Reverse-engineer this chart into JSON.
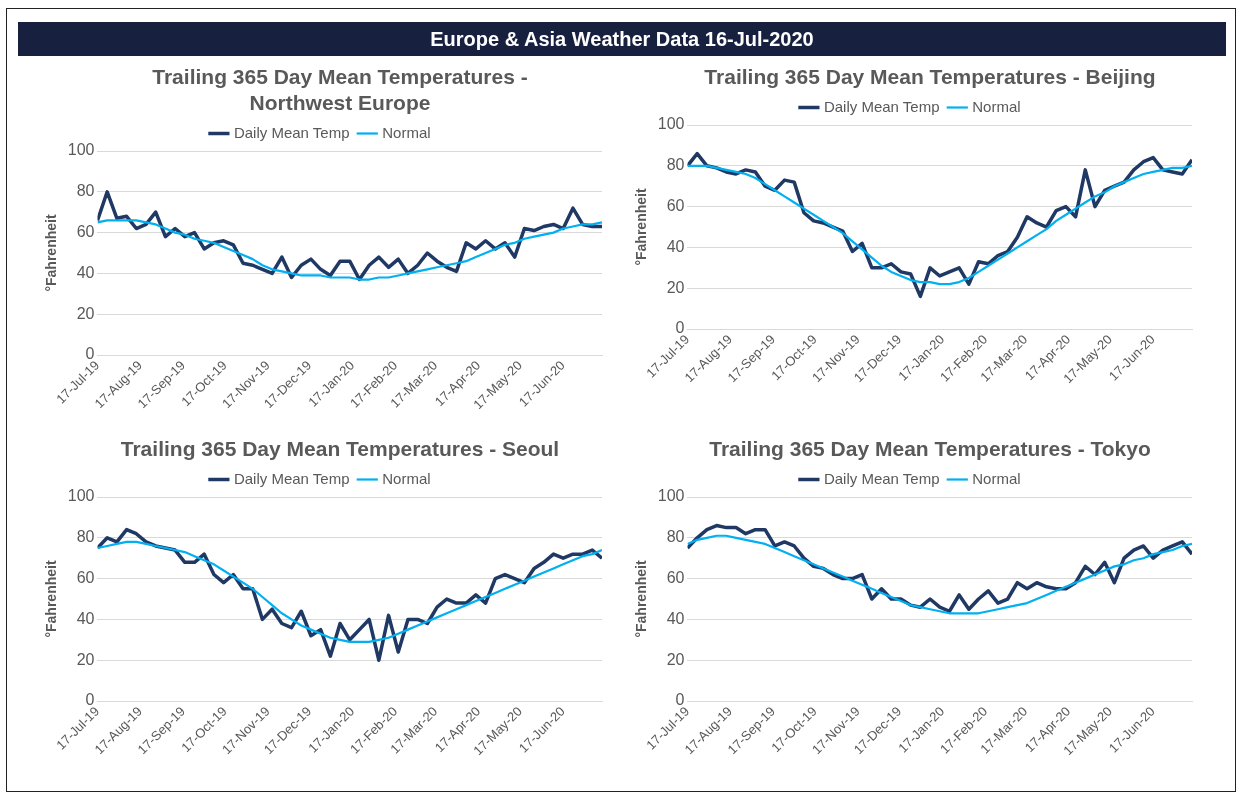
{
  "chart_data": [
    {
      "type": "other",
      "title": "Europe & Asia Weather Data  16-Jul-2020"
    },
    {
      "type": "line",
      "title": "Trailing 365 Day Mean Temperatures - Northwest Europe",
      "ylabel": "°Fahrenheit",
      "x": [
        "2019-07-17",
        "2019-07-24",
        "2019-07-31",
        "2019-08-07",
        "2019-08-14",
        "2019-08-21",
        "2019-08-28",
        "2019-09-04",
        "2019-09-11",
        "2019-09-18",
        "2019-09-25",
        "2019-10-02",
        "2019-10-09",
        "2019-10-16",
        "2019-10-23",
        "2019-10-30",
        "2019-11-06",
        "2019-11-13",
        "2019-11-20",
        "2019-11-27",
        "2019-12-04",
        "2019-12-11",
        "2019-12-18",
        "2019-12-25",
        "2020-01-01",
        "2020-01-08",
        "2020-01-15",
        "2020-01-22",
        "2020-01-29",
        "2020-02-05",
        "2020-02-12",
        "2020-02-19",
        "2020-02-26",
        "2020-03-04",
        "2020-03-11",
        "2020-03-18",
        "2020-03-25",
        "2020-04-01",
        "2020-04-08",
        "2020-04-15",
        "2020-04-22",
        "2020-04-29",
        "2020-05-06",
        "2020-05-13",
        "2020-05-20",
        "2020-05-27",
        "2020-06-03",
        "2020-06-10",
        "2020-06-17",
        "2020-06-24",
        "2020-07-01",
        "2020-07-08",
        "2020-07-15"
      ],
      "series": [
        {
          "name": "Daily Mean Temp",
          "color": "#1f3864",
          "values": [
            66,
            80,
            67,
            68,
            62,
            64,
            70,
            58,
            62,
            58,
            60,
            52,
            55,
            56,
            54,
            45,
            44,
            42,
            40,
            48,
            38,
            44,
            47,
            42,
            39,
            46,
            46,
            37,
            44,
            48,
            43,
            47,
            40,
            44,
            50,
            46,
            43,
            41,
            55,
            52,
            56,
            52,
            55,
            48,
            62,
            61,
            63,
            64,
            62,
            72,
            64,
            63,
            63
          ]
        },
        {
          "name": "Normal",
          "color": "#00b0f0",
          "values": [
            65,
            66,
            66,
            66,
            66,
            65,
            64,
            62,
            60,
            59,
            57,
            56,
            55,
            53,
            51,
            49,
            47,
            44,
            42,
            41,
            40,
            39,
            39,
            39,
            38,
            38,
            38,
            37,
            37,
            38,
            38,
            39,
            40,
            41,
            42,
            43,
            44,
            45,
            46,
            48,
            50,
            52,
            54,
            55,
            57,
            58,
            59,
            60,
            62,
            63,
            64,
            64,
            65
          ]
        }
      ],
      "xlim": [
        "2019-07-17",
        "2020-07-15"
      ],
      "xticks": [
        {
          "value": "2019-07-17",
          "label": "17-Jul-19"
        },
        {
          "value": "2019-08-17",
          "label": "17-Aug-19"
        },
        {
          "value": "2019-09-17",
          "label": "17-Sep-19"
        },
        {
          "value": "2019-10-17",
          "label": "17-Oct-19"
        },
        {
          "value": "2019-11-17",
          "label": "17-Nov-19"
        },
        {
          "value": "2019-12-17",
          "label": "17-Dec-19"
        },
        {
          "value": "2020-01-17",
          "label": "17-Jan-20"
        },
        {
          "value": "2020-02-17",
          "label": "17-Feb-20"
        },
        {
          "value": "2020-03-17",
          "label": "17-Mar-20"
        },
        {
          "value": "2020-04-17",
          "label": "17-Apr-20"
        },
        {
          "value": "2020-05-17",
          "label": "17-May-20"
        },
        {
          "value": "2020-06-17",
          "label": "17-Jun-20"
        }
      ],
      "ylim": [
        0,
        100
      ],
      "yticks": [
        0,
        20,
        40,
        60,
        80,
        100
      ],
      "grid": "y",
      "legend": "top"
    },
    {
      "type": "line",
      "title": "Trailing 365 Day Mean Temperatures - Beijing",
      "ylabel": "°Fahrenheit",
      "x": [
        "2019-07-17",
        "2019-07-24",
        "2019-07-31",
        "2019-08-07",
        "2019-08-14",
        "2019-08-21",
        "2019-08-28",
        "2019-09-04",
        "2019-09-11",
        "2019-09-18",
        "2019-09-25",
        "2019-10-02",
        "2019-10-09",
        "2019-10-16",
        "2019-10-23",
        "2019-10-30",
        "2019-11-06",
        "2019-11-13",
        "2019-11-20",
        "2019-11-27",
        "2019-12-04",
        "2019-12-11",
        "2019-12-18",
        "2019-12-25",
        "2020-01-01",
        "2020-01-08",
        "2020-01-15",
        "2020-01-22",
        "2020-01-29",
        "2020-02-05",
        "2020-02-12",
        "2020-02-19",
        "2020-02-26",
        "2020-03-04",
        "2020-03-11",
        "2020-03-18",
        "2020-03-25",
        "2020-04-01",
        "2020-04-08",
        "2020-04-15",
        "2020-04-22",
        "2020-04-29",
        "2020-05-06",
        "2020-05-13",
        "2020-05-20",
        "2020-05-27",
        "2020-06-03",
        "2020-06-10",
        "2020-06-17",
        "2020-06-24",
        "2020-07-01",
        "2020-07-08",
        "2020-07-15"
      ],
      "series": [
        {
          "name": "Daily Mean Temp",
          "color": "#1f3864",
          "values": [
            80,
            86,
            80,
            79,
            77,
            76,
            78,
            77,
            70,
            68,
            73,
            72,
            57,
            53,
            52,
            50,
            48,
            38,
            42,
            30,
            30,
            32,
            28,
            27,
            16,
            30,
            26,
            28,
            30,
            22,
            33,
            32,
            36,
            38,
            45,
            55,
            52,
            50,
            58,
            60,
            55,
            78,
            60,
            68,
            70,
            72,
            78,
            82,
            84,
            78,
            77,
            76,
            83
          ]
        },
        {
          "name": "Normal",
          "color": "#00b0f0",
          "values": [
            80,
            80,
            80,
            79,
            78,
            77,
            76,
            74,
            71,
            68,
            65,
            62,
            59,
            56,
            53,
            50,
            47,
            43,
            39,
            35,
            31,
            28,
            26,
            24,
            23,
            23,
            22,
            22,
            23,
            25,
            28,
            31,
            34,
            37,
            40,
            43,
            46,
            49,
            53,
            56,
            59,
            62,
            65,
            67,
            70,
            72,
            74,
            76,
            77,
            78,
            79,
            79,
            80
          ]
        }
      ],
      "xlim": [
        "2019-07-17",
        "2020-07-15"
      ],
      "xticks": [
        {
          "value": "2019-07-17",
          "label": "17-Jul-19"
        },
        {
          "value": "2019-08-17",
          "label": "17-Aug-19"
        },
        {
          "value": "2019-09-17",
          "label": "17-Sep-19"
        },
        {
          "value": "2019-10-17",
          "label": "17-Oct-19"
        },
        {
          "value": "2019-11-17",
          "label": "17-Nov-19"
        },
        {
          "value": "2019-12-17",
          "label": "17-Dec-19"
        },
        {
          "value": "2020-01-17",
          "label": "17-Jan-20"
        },
        {
          "value": "2020-02-17",
          "label": "17-Feb-20"
        },
        {
          "value": "2020-03-17",
          "label": "17-Mar-20"
        },
        {
          "value": "2020-04-17",
          "label": "17-Apr-20"
        },
        {
          "value": "2020-05-17",
          "label": "17-May-20"
        },
        {
          "value": "2020-06-17",
          "label": "17-Jun-20"
        }
      ],
      "ylim": [
        0,
        100
      ],
      "yticks": [
        0,
        20,
        40,
        60,
        80,
        100
      ],
      "grid": "y",
      "legend": "top"
    },
    {
      "type": "line",
      "title": "Trailing 365 Day Mean Temperatures - Seoul",
      "ylabel": "°Fahrenheit",
      "x": [
        "2019-07-17",
        "2019-07-24",
        "2019-07-31",
        "2019-08-07",
        "2019-08-14",
        "2019-08-21",
        "2019-08-28",
        "2019-09-04",
        "2019-09-11",
        "2019-09-18",
        "2019-09-25",
        "2019-10-02",
        "2019-10-09",
        "2019-10-16",
        "2019-10-23",
        "2019-10-30",
        "2019-11-06",
        "2019-11-13",
        "2019-11-20",
        "2019-11-27",
        "2019-12-04",
        "2019-12-11",
        "2019-12-18",
        "2019-12-25",
        "2020-01-01",
        "2020-01-08",
        "2020-01-15",
        "2020-01-22",
        "2020-01-29",
        "2020-02-05",
        "2020-02-12",
        "2020-02-19",
        "2020-02-26",
        "2020-03-04",
        "2020-03-11",
        "2020-03-18",
        "2020-03-25",
        "2020-04-01",
        "2020-04-08",
        "2020-04-15",
        "2020-04-22",
        "2020-04-29",
        "2020-05-06",
        "2020-05-13",
        "2020-05-20",
        "2020-05-27",
        "2020-06-03",
        "2020-06-10",
        "2020-06-17",
        "2020-06-24",
        "2020-07-01",
        "2020-07-08",
        "2020-07-15"
      ],
      "series": [
        {
          "name": "Daily Mean Temp",
          "color": "#1f3864",
          "values": [
            75,
            80,
            78,
            84,
            82,
            78,
            76,
            75,
            74,
            68,
            68,
            72,
            62,
            58,
            62,
            55,
            55,
            40,
            45,
            38,
            36,
            44,
            32,
            35,
            22,
            38,
            30,
            35,
            40,
            20,
            42,
            24,
            40,
            40,
            38,
            46,
            50,
            48,
            48,
            52,
            48,
            60,
            62,
            60,
            58,
            65,
            68,
            72,
            70,
            72,
            72,
            74,
            70
          ]
        },
        {
          "name": "Normal",
          "color": "#00b0f0",
          "values": [
            75,
            76,
            77,
            78,
            78,
            77,
            76,
            75,
            74,
            73,
            71,
            69,
            67,
            64,
            61,
            58,
            55,
            51,
            47,
            43,
            40,
            37,
            35,
            33,
            31,
            30,
            29,
            29,
            29,
            30,
            31,
            33,
            35,
            37,
            39,
            41,
            43,
            45,
            47,
            49,
            51,
            53,
            55,
            57,
            59,
            61,
            63,
            65,
            67,
            69,
            71,
            72,
            74
          ]
        }
      ],
      "xlim": [
        "2019-07-17",
        "2020-07-15"
      ],
      "xticks": [
        {
          "value": "2019-07-17",
          "label": "17-Jul-19"
        },
        {
          "value": "2019-08-17",
          "label": "17-Aug-19"
        },
        {
          "value": "2019-09-17",
          "label": "17-Sep-19"
        },
        {
          "value": "2019-10-17",
          "label": "17-Oct-19"
        },
        {
          "value": "2019-11-17",
          "label": "17-Nov-19"
        },
        {
          "value": "2019-12-17",
          "label": "17-Dec-19"
        },
        {
          "value": "2020-01-17",
          "label": "17-Jan-20"
        },
        {
          "value": "2020-02-17",
          "label": "17-Feb-20"
        },
        {
          "value": "2020-03-17",
          "label": "17-Mar-20"
        },
        {
          "value": "2020-04-17",
          "label": "17-Apr-20"
        },
        {
          "value": "2020-05-17",
          "label": "17-May-20"
        },
        {
          "value": "2020-06-17",
          "label": "17-Jun-20"
        }
      ],
      "ylim": [
        0,
        100
      ],
      "yticks": [
        0,
        20,
        40,
        60,
        80,
        100
      ],
      "grid": "y",
      "legend": "top"
    },
    {
      "type": "line",
      "title": "Trailing 365 Day Mean Temperatures - Tokyo",
      "ylabel": "°Fahrenheit",
      "x": [
        "2019-07-17",
        "2019-07-24",
        "2019-07-31",
        "2019-08-07",
        "2019-08-14",
        "2019-08-21",
        "2019-08-28",
        "2019-09-04",
        "2019-09-11",
        "2019-09-18",
        "2019-09-25",
        "2019-10-02",
        "2019-10-09",
        "2019-10-16",
        "2019-10-23",
        "2019-10-30",
        "2019-11-06",
        "2019-11-13",
        "2019-11-20",
        "2019-11-27",
        "2019-12-04",
        "2019-12-11",
        "2019-12-18",
        "2019-12-25",
        "2020-01-01",
        "2020-01-08",
        "2020-01-15",
        "2020-01-22",
        "2020-01-29",
        "2020-02-05",
        "2020-02-12",
        "2020-02-19",
        "2020-02-26",
        "2020-03-04",
        "2020-03-11",
        "2020-03-18",
        "2020-03-25",
        "2020-04-01",
        "2020-04-08",
        "2020-04-15",
        "2020-04-22",
        "2020-04-29",
        "2020-05-06",
        "2020-05-13",
        "2020-05-20",
        "2020-05-27",
        "2020-06-03",
        "2020-06-10",
        "2020-06-17",
        "2020-06-24",
        "2020-07-01",
        "2020-07-08",
        "2020-07-15"
      ],
      "series": [
        {
          "name": "Daily Mean Temp",
          "color": "#1f3864",
          "values": [
            75,
            80,
            84,
            86,
            85,
            85,
            82,
            84,
            84,
            76,
            78,
            76,
            70,
            66,
            65,
            62,
            60,
            60,
            62,
            50,
            55,
            50,
            50,
            47,
            46,
            50,
            46,
            44,
            52,
            45,
            50,
            54,
            48,
            50,
            58,
            55,
            58,
            56,
            55,
            55,
            58,
            66,
            62,
            68,
            58,
            70,
            74,
            76,
            70,
            74,
            76,
            78,
            72
          ]
        },
        {
          "name": "Normal",
          "color": "#00b0f0",
          "values": [
            77,
            79,
            80,
            81,
            81,
            80,
            79,
            78,
            77,
            75,
            73,
            71,
            69,
            67,
            65,
            63,
            61,
            59,
            57,
            55,
            53,
            51,
            49,
            47,
            46,
            45,
            44,
            43,
            43,
            43,
            43,
            44,
            45,
            46,
            47,
            48,
            50,
            52,
            54,
            56,
            58,
            60,
            62,
            64,
            66,
            67,
            69,
            70,
            72,
            73,
            74,
            76,
            77
          ]
        }
      ],
      "xlim": [
        "2019-07-17",
        "2020-07-15"
      ],
      "xticks": [
        {
          "value": "2019-07-17",
          "label": "17-Jul-19"
        },
        {
          "value": "2019-08-17",
          "label": "17-Aug-19"
        },
        {
          "value": "2019-09-17",
          "label": "17-Sep-19"
        },
        {
          "value": "2019-10-17",
          "label": "17-Oct-19"
        },
        {
          "value": "2019-11-17",
          "label": "17-Nov-19"
        },
        {
          "value": "2019-12-17",
          "label": "17-Dec-19"
        },
        {
          "value": "2020-01-17",
          "label": "17-Jan-20"
        },
        {
          "value": "2020-02-17",
          "label": "17-Feb-20"
        },
        {
          "value": "2020-03-17",
          "label": "17-Mar-20"
        },
        {
          "value": "2020-04-17",
          "label": "17-Apr-20"
        },
        {
          "value": "2020-05-17",
          "label": "17-May-20"
        },
        {
          "value": "2020-06-17",
          "label": "17-Jun-20"
        }
      ],
      "ylim": [
        0,
        100
      ],
      "yticks": [
        0,
        20,
        40,
        60,
        80,
        100
      ],
      "grid": "y",
      "legend": "top"
    }
  ]
}
